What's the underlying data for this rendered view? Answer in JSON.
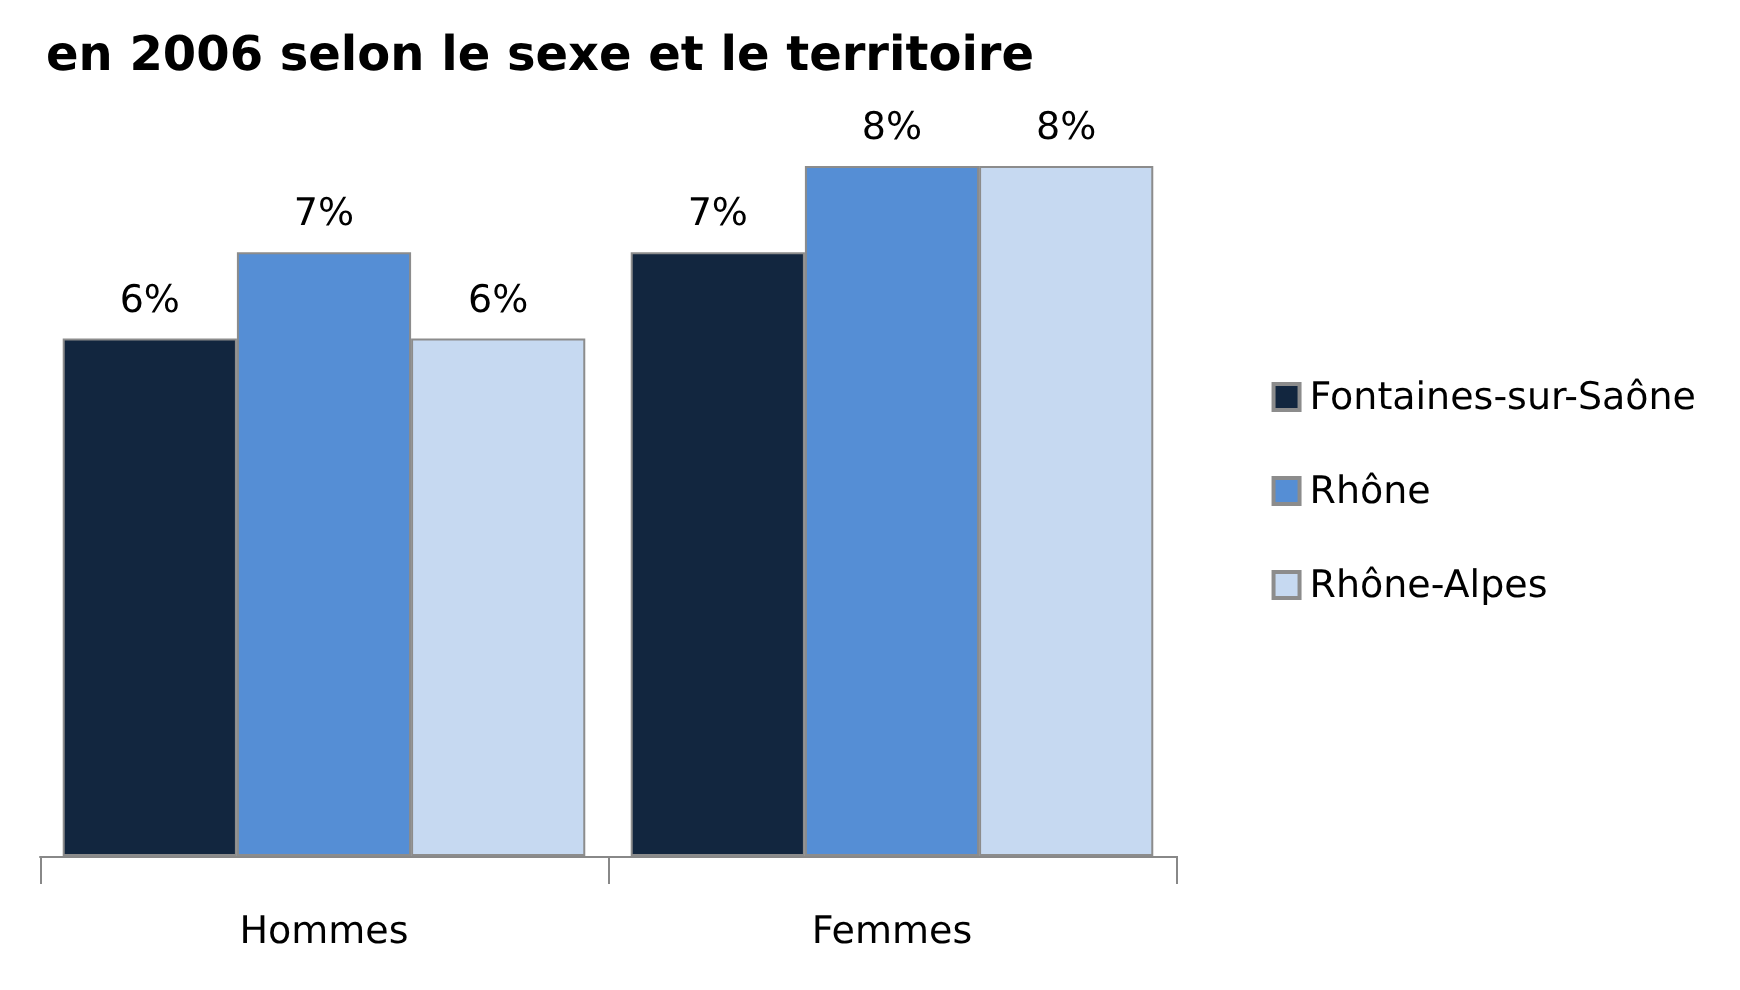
{
  "chart_data": {
    "type": "bar",
    "title": "en 2006 selon le sexe et le territoire",
    "categories": [
      "Hommes",
      "Femmes"
    ],
    "legend": "right",
    "series": [
      {
        "name": "Fontaines-sur-Saône",
        "color": "#12263f",
        "values": [
          6,
          7
        ],
        "value_labels": [
          "6%",
          "7%"
        ]
      },
      {
        "name": "Rhône",
        "color": "#558ed5",
        "values": [
          7,
          8
        ],
        "value_labels": [
          "7%",
          "8%"
        ]
      },
      {
        "name": "Rhône-Alpes",
        "color": "#c6d9f1",
        "values": [
          6,
          8
        ],
        "value_labels": [
          "6%",
          "8%"
        ]
      }
    ]
  }
}
